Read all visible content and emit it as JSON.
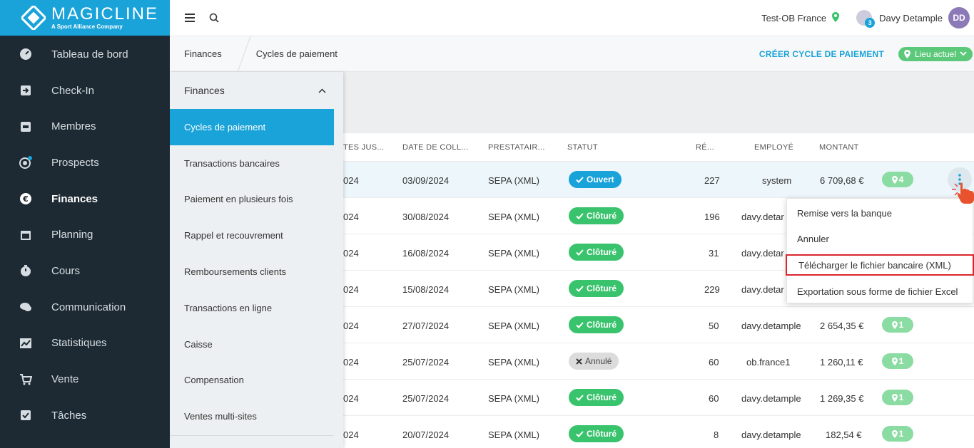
{
  "brand": {
    "name": "MAGICLINE",
    "tagline": "A Sport Alliance Company"
  },
  "sidebar": {
    "items": [
      {
        "label": "Tableau de bord",
        "icon": "gauge-icon"
      },
      {
        "label": "Check-In",
        "icon": "login-icon"
      },
      {
        "label": "Membres",
        "icon": "member-card-icon"
      },
      {
        "label": "Prospects",
        "icon": "prospects-icon"
      },
      {
        "label": "Finances",
        "icon": "euro-icon"
      },
      {
        "label": "Planning",
        "icon": "calendar-icon"
      },
      {
        "label": "Cours",
        "icon": "stopwatch-icon"
      },
      {
        "label": "Communication",
        "icon": "chat-icon"
      },
      {
        "label": "Statistiques",
        "icon": "chart-icon"
      },
      {
        "label": "Vente",
        "icon": "cart-icon"
      },
      {
        "label": "Tâches",
        "icon": "checkbox-icon"
      }
    ]
  },
  "topbar": {
    "studio": "Test-OB France",
    "notifications": "3",
    "user_name": "Davy Detample",
    "initials": "DD"
  },
  "breadcrumb": {
    "level1": "Finances",
    "level2": "Cycles de paiement"
  },
  "actions": {
    "create": "CRÉER CYCLE DE PAIEMENT",
    "location": "Lieu actuel"
  },
  "submenu": {
    "title": "Finances",
    "items": [
      "Cycles de paiement",
      "Transactions bancaires",
      "Paiement en plusieurs fois",
      "Rappel et recouvrement",
      "Remboursements clients",
      "Transactions en ligne",
      "Caisse",
      "Compensation",
      "Ventes multi-sites"
    ]
  },
  "table": {
    "columns": [
      "TES JUS...",
      "DATE DE COLL...",
      "PRESTATAIR...",
      "STATUT",
      "RÉ...",
      "EMPLOYÉ",
      "MONTANT"
    ],
    "rows": [
      {
        "c1": "024",
        "date": "03/09/2024",
        "provider": "SEPA (XML)",
        "status": "Ouvert",
        "status_type": "open",
        "count": "227",
        "employee": "system",
        "amount": "6 709,68 €",
        "loc": "4"
      },
      {
        "c1": "024",
        "date": "30/08/2024",
        "provider": "SEPA (XML)",
        "status": "Clôturé",
        "status_type": "closed",
        "count": "196",
        "employee": "davy.detar",
        "amount": "",
        "loc": ""
      },
      {
        "c1": "024",
        "date": "16/08/2024",
        "provider": "SEPA (XML)",
        "status": "Clôturé",
        "status_type": "closed",
        "count": "31",
        "employee": "davy.detar",
        "amount": "",
        "loc": ""
      },
      {
        "c1": "024",
        "date": "15/08/2024",
        "provider": "SEPA (XML)",
        "status": "Clôturé",
        "status_type": "closed",
        "count": "229",
        "employee": "davy.detar",
        "amount": "",
        "loc": ""
      },
      {
        "c1": "024",
        "date": "27/07/2024",
        "provider": "SEPA (XML)",
        "status": "Clôturé",
        "status_type": "closed",
        "count": "50",
        "employee": "davy.detample",
        "amount": "2 654,35 €",
        "loc": "1"
      },
      {
        "c1": "024",
        "date": "25/07/2024",
        "provider": "SEPA (XML)",
        "status": "Annulé",
        "status_type": "cancel",
        "count": "60",
        "employee": "ob.france1",
        "amount": "1 260,11 €",
        "loc": "1"
      },
      {
        "c1": "024",
        "date": "25/07/2024",
        "provider": "SEPA (XML)",
        "status": "Clôturé",
        "status_type": "closed",
        "count": "60",
        "employee": "davy.detample",
        "amount": "1 269,35 €",
        "loc": "1"
      },
      {
        "c1": "024",
        "date": "20/07/2024",
        "provider": "SEPA (XML)",
        "status": "Clôturé",
        "status_type": "closed",
        "count": "8",
        "employee": "davy.detample",
        "amount": "182,54 €",
        "loc": "1"
      }
    ]
  },
  "dropdown": {
    "items": [
      "Remise vers la banque",
      "Annuler",
      "Télécharger le fichier bancaire (XML)",
      "Exportation sous forme de fichier Excel"
    ]
  },
  "colors": {
    "brand_blue": "#1aa3d9",
    "sidebar_bg": "#1e2a33",
    "green": "#3ac36d",
    "highlight_red": "#d9262b"
  }
}
